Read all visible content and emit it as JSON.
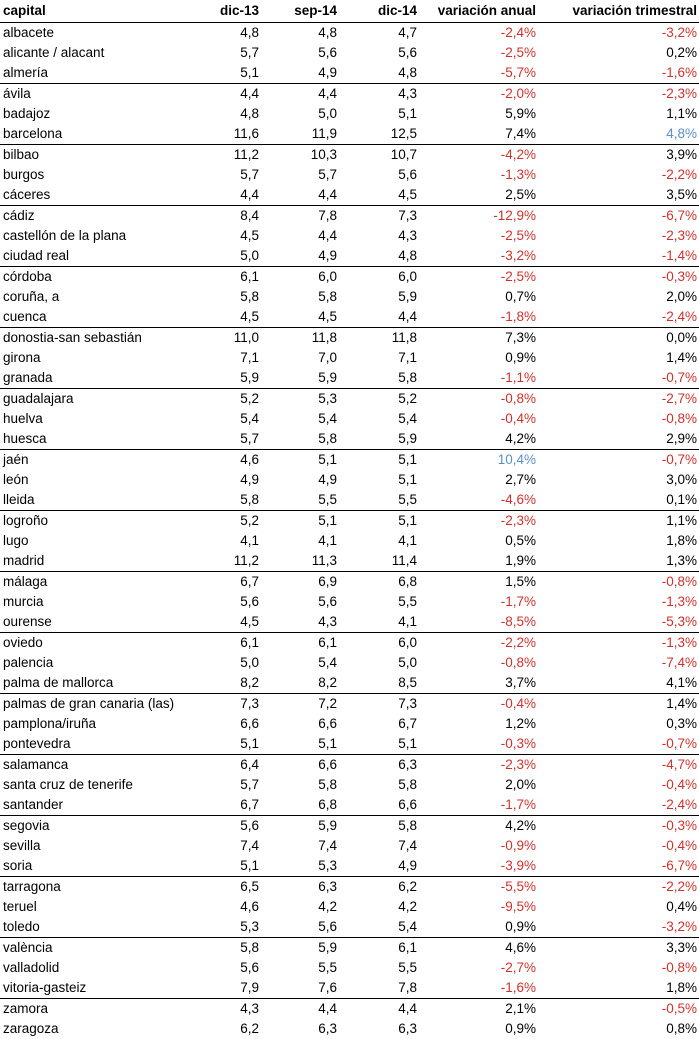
{
  "headers": {
    "capital": "capital",
    "dic13": "dic-13",
    "sep14": "sep-14",
    "dic14": "dic-14",
    "anual": "variación anual",
    "trimestral": "variación trimestral"
  },
  "colors": {
    "negative": "#d0312d",
    "positive": "#000000",
    "highlight": "#5b8fc9"
  },
  "rows": [
    {
      "capital": "albacete",
      "dic13": "4,8",
      "sep14": "4,8",
      "dic14": "4,7",
      "anual": "-2,4%",
      "anual_style": "neg",
      "trim": "-3,2%",
      "trim_style": "neg",
      "group_start": true
    },
    {
      "capital": "alicante / alacant",
      "dic13": "5,7",
      "sep14": "5,6",
      "dic14": "5,6",
      "anual": "-2,5%",
      "anual_style": "neg",
      "trim": "0,2%",
      "trim_style": "pos"
    },
    {
      "capital": "almería",
      "dic13": "5,1",
      "sep14": "4,9",
      "dic14": "4,8",
      "anual": "-5,7%",
      "anual_style": "neg",
      "trim": "-1,6%",
      "trim_style": "neg"
    },
    {
      "capital": "ávila",
      "dic13": "4,4",
      "sep14": "4,4",
      "dic14": "4,3",
      "anual": "-2,0%",
      "anual_style": "neg",
      "trim": "-2,3%",
      "trim_style": "neg",
      "group_start": true
    },
    {
      "capital": "badajoz",
      "dic13": "4,8",
      "sep14": "5,0",
      "dic14": "5,1",
      "anual": "5,9%",
      "anual_style": "pos",
      "trim": "1,1%",
      "trim_style": "pos"
    },
    {
      "capital": "barcelona",
      "dic13": "11,6",
      "sep14": "11,9",
      "dic14": "12,5",
      "anual": "7,4%",
      "anual_style": "pos",
      "trim": "4,8%",
      "trim_style": "hi"
    },
    {
      "capital": "bilbao",
      "dic13": "11,2",
      "sep14": "10,3",
      "dic14": "10,7",
      "anual": "-4,2%",
      "anual_style": "neg",
      "trim": "3,9%",
      "trim_style": "pos",
      "group_start": true
    },
    {
      "capital": "burgos",
      "dic13": "5,7",
      "sep14": "5,7",
      "dic14": "5,6",
      "anual": "-1,3%",
      "anual_style": "neg",
      "trim": "-2,2%",
      "trim_style": "neg"
    },
    {
      "capital": "cáceres",
      "dic13": "4,4",
      "sep14": "4,4",
      "dic14": "4,5",
      "anual": "2,5%",
      "anual_style": "pos",
      "trim": "3,5%",
      "trim_style": "pos"
    },
    {
      "capital": "cádiz",
      "dic13": "8,4",
      "sep14": "7,8",
      "dic14": "7,3",
      "anual": "-12,9%",
      "anual_style": "neg",
      "trim": "-6,7%",
      "trim_style": "neg",
      "group_start": true
    },
    {
      "capital": "castellón de la plana",
      "dic13": "4,5",
      "sep14": "4,4",
      "dic14": "4,3",
      "anual": "-2,5%",
      "anual_style": "neg",
      "trim": "-2,3%",
      "trim_style": "neg"
    },
    {
      "capital": "ciudad real",
      "dic13": "5,0",
      "sep14": "4,9",
      "dic14": "4,8",
      "anual": "-3,2%",
      "anual_style": "neg",
      "trim": "-1,4%",
      "trim_style": "neg"
    },
    {
      "capital": "córdoba",
      "dic13": "6,1",
      "sep14": "6,0",
      "dic14": "6,0",
      "anual": "-2,5%",
      "anual_style": "neg",
      "trim": "-0,3%",
      "trim_style": "neg",
      "group_start": true
    },
    {
      "capital": "coruña, a",
      "dic13": "5,8",
      "sep14": "5,8",
      "dic14": "5,9",
      "anual": "0,7%",
      "anual_style": "pos",
      "trim": "2,0%",
      "trim_style": "pos"
    },
    {
      "capital": "cuenca",
      "dic13": "4,5",
      "sep14": "4,5",
      "dic14": "4,4",
      "anual": "-1,8%",
      "anual_style": "neg",
      "trim": "-2,4%",
      "trim_style": "neg"
    },
    {
      "capital": "donostia-san sebastián",
      "dic13": "11,0",
      "sep14": "11,8",
      "dic14": "11,8",
      "anual": "7,3%",
      "anual_style": "pos",
      "trim": "0,0%",
      "trim_style": "pos",
      "group_start": true
    },
    {
      "capital": "girona",
      "dic13": "7,1",
      "sep14": "7,0",
      "dic14": "7,1",
      "anual": "0,9%",
      "anual_style": "pos",
      "trim": "1,4%",
      "trim_style": "pos"
    },
    {
      "capital": "granada",
      "dic13": "5,9",
      "sep14": "5,9",
      "dic14": "5,8",
      "anual": "-1,1%",
      "anual_style": "neg",
      "trim": "-0,7%",
      "trim_style": "neg"
    },
    {
      "capital": "guadalajara",
      "dic13": "5,2",
      "sep14": "5,3",
      "dic14": "5,2",
      "anual": "-0,8%",
      "anual_style": "neg",
      "trim": "-2,7%",
      "trim_style": "neg",
      "group_start": true
    },
    {
      "capital": "huelva",
      "dic13": "5,4",
      "sep14": "5,4",
      "dic14": "5,4",
      "anual": "-0,4%",
      "anual_style": "neg",
      "trim": "-0,8%",
      "trim_style": "neg"
    },
    {
      "capital": "huesca",
      "dic13": "5,7",
      "sep14": "5,8",
      "dic14": "5,9",
      "anual": "4,2%",
      "anual_style": "pos",
      "trim": "2,9%",
      "trim_style": "pos"
    },
    {
      "capital": "jaén",
      "dic13": "4,6",
      "sep14": "5,1",
      "dic14": "5,1",
      "anual": "10,4%",
      "anual_style": "hi",
      "trim": "-0,7%",
      "trim_style": "neg",
      "group_start": true
    },
    {
      "capital": "león",
      "dic13": "4,9",
      "sep14": "4,9",
      "dic14": "5,1",
      "anual": "2,7%",
      "anual_style": "pos",
      "trim": "3,0%",
      "trim_style": "pos"
    },
    {
      "capital": "lleida",
      "dic13": "5,8",
      "sep14": "5,5",
      "dic14": "5,5",
      "anual": "-4,6%",
      "anual_style": "neg",
      "trim": "0,1%",
      "trim_style": "pos"
    },
    {
      "capital": "logroño",
      "dic13": "5,2",
      "sep14": "5,1",
      "dic14": "5,1",
      "anual": "-2,3%",
      "anual_style": "neg",
      "trim": "1,1%",
      "trim_style": "pos",
      "group_start": true
    },
    {
      "capital": "lugo",
      "dic13": "4,1",
      "sep14": "4,1",
      "dic14": "4,1",
      "anual": "0,5%",
      "anual_style": "pos",
      "trim": "1,8%",
      "trim_style": "pos"
    },
    {
      "capital": "madrid",
      "dic13": "11,2",
      "sep14": "11,3",
      "dic14": "11,4",
      "anual": "1,9%",
      "anual_style": "pos",
      "trim": "1,3%",
      "trim_style": "pos"
    },
    {
      "capital": "málaga",
      "dic13": "6,7",
      "sep14": "6,9",
      "dic14": "6,8",
      "anual": "1,5%",
      "anual_style": "pos",
      "trim": "-0,8%",
      "trim_style": "neg",
      "group_start": true
    },
    {
      "capital": "murcia",
      "dic13": "5,6",
      "sep14": "5,6",
      "dic14": "5,5",
      "anual": "-1,7%",
      "anual_style": "neg",
      "trim": "-1,3%",
      "trim_style": "neg"
    },
    {
      "capital": "ourense",
      "dic13": "4,5",
      "sep14": "4,3",
      "dic14": "4,1",
      "anual": "-8,5%",
      "anual_style": "neg",
      "trim": "-5,3%",
      "trim_style": "neg"
    },
    {
      "capital": "oviedo",
      "dic13": "6,1",
      "sep14": "6,1",
      "dic14": "6,0",
      "anual": "-2,2%",
      "anual_style": "neg",
      "trim": "-1,3%",
      "trim_style": "neg",
      "group_start": true
    },
    {
      "capital": "palencia",
      "dic13": "5,0",
      "sep14": "5,4",
      "dic14": "5,0",
      "anual": "-0,8%",
      "anual_style": "neg",
      "trim": "-7,4%",
      "trim_style": "neg"
    },
    {
      "capital": "palma de mallorca",
      "dic13": "8,2",
      "sep14": "8,2",
      "dic14": "8,5",
      "anual": "3,7%",
      "anual_style": "pos",
      "trim": "4,1%",
      "trim_style": "pos"
    },
    {
      "capital": "palmas de gran canaria (las)",
      "dic13": "7,3",
      "sep14": "7,2",
      "dic14": "7,3",
      "anual": "-0,4%",
      "anual_style": "neg",
      "trim": "1,4%",
      "trim_style": "pos",
      "group_start": true
    },
    {
      "capital": "pamplona/iruña",
      "dic13": "6,6",
      "sep14": "6,6",
      "dic14": "6,7",
      "anual": "1,2%",
      "anual_style": "pos",
      "trim": "0,3%",
      "trim_style": "pos"
    },
    {
      "capital": "pontevedra",
      "dic13": "5,1",
      "sep14": "5,1",
      "dic14": "5,1",
      "anual": "-0,3%",
      "anual_style": "neg",
      "trim": "-0,7%",
      "trim_style": "neg"
    },
    {
      "capital": "salamanca",
      "dic13": "6,4",
      "sep14": "6,6",
      "dic14": "6,3",
      "anual": "-2,3%",
      "anual_style": "neg",
      "trim": "-4,7%",
      "trim_style": "neg",
      "group_start": true
    },
    {
      "capital": "santa cruz de tenerife",
      "dic13": "5,7",
      "sep14": "5,8",
      "dic14": "5,8",
      "anual": "2,0%",
      "anual_style": "pos",
      "trim": "-0,4%",
      "trim_style": "neg"
    },
    {
      "capital": "santander",
      "dic13": "6,7",
      "sep14": "6,8",
      "dic14": "6,6",
      "anual": "-1,7%",
      "anual_style": "neg",
      "trim": "-2,4%",
      "trim_style": "neg"
    },
    {
      "capital": "segovia",
      "dic13": "5,6",
      "sep14": "5,9",
      "dic14": "5,8",
      "anual": "4,2%",
      "anual_style": "pos",
      "trim": "-0,3%",
      "trim_style": "neg",
      "group_start": true
    },
    {
      "capital": "sevilla",
      "dic13": "7,4",
      "sep14": "7,4",
      "dic14": "7,4",
      "anual": "-0,9%",
      "anual_style": "neg",
      "trim": "-0,4%",
      "trim_style": "neg"
    },
    {
      "capital": "soria",
      "dic13": "5,1",
      "sep14": "5,3",
      "dic14": "4,9",
      "anual": "-3,9%",
      "anual_style": "neg",
      "trim": "-6,7%",
      "trim_style": "neg"
    },
    {
      "capital": "tarragona",
      "dic13": "6,5",
      "sep14": "6,3",
      "dic14": "6,2",
      "anual": "-5,5%",
      "anual_style": "neg",
      "trim": "-2,2%",
      "trim_style": "neg",
      "group_start": true
    },
    {
      "capital": "teruel",
      "dic13": "4,6",
      "sep14": "4,2",
      "dic14": "4,2",
      "anual": "-9,5%",
      "anual_style": "neg",
      "trim": "0,4%",
      "trim_style": "pos"
    },
    {
      "capital": "toledo",
      "dic13": "5,3",
      "sep14": "5,6",
      "dic14": "5,4",
      "anual": "0,9%",
      "anual_style": "pos",
      "trim": "-3,2%",
      "trim_style": "neg"
    },
    {
      "capital": "valència",
      "dic13": "5,8",
      "sep14": "5,9",
      "dic14": "6,1",
      "anual": "4,6%",
      "anual_style": "pos",
      "trim": "3,3%",
      "trim_style": "pos",
      "group_start": true
    },
    {
      "capital": "valladolid",
      "dic13": "5,6",
      "sep14": "5,5",
      "dic14": "5,5",
      "anual": "-2,7%",
      "anual_style": "neg",
      "trim": "-0,8%",
      "trim_style": "neg"
    },
    {
      "capital": "vitoria-gasteiz",
      "dic13": "7,9",
      "sep14": "7,6",
      "dic14": "7,8",
      "anual": "-1,6%",
      "anual_style": "neg",
      "trim": "1,8%",
      "trim_style": "pos"
    },
    {
      "capital": "zamora",
      "dic13": "4,3",
      "sep14": "4,4",
      "dic14": "4,4",
      "anual": "2,1%",
      "anual_style": "pos",
      "trim": "-0,5%",
      "trim_style": "neg",
      "group_start": true
    },
    {
      "capital": "zaragoza",
      "dic13": "6,2",
      "sep14": "6,3",
      "dic14": "6,3",
      "anual": "0,9%",
      "anual_style": "pos",
      "trim": "0,8%",
      "trim_style": "pos"
    }
  ]
}
